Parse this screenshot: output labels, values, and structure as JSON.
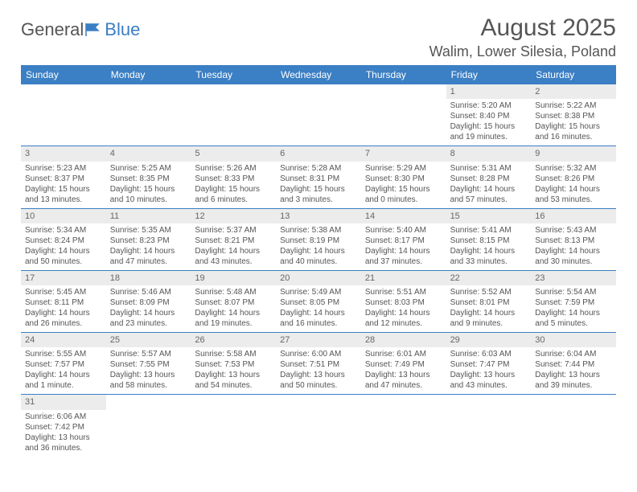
{
  "brand": {
    "part1": "General",
    "part2": "Blue"
  },
  "title": "August 2025",
  "location": "Walim, Lower Silesia, Poland",
  "colors": {
    "header_bg": "#3b7fc4",
    "header_text": "#ffffff",
    "daynum_bg": "#ececec",
    "border": "#3b7fc4",
    "text": "#555555",
    "background": "#ffffff"
  },
  "daynames": [
    "Sunday",
    "Monday",
    "Tuesday",
    "Wednesday",
    "Thursday",
    "Friday",
    "Saturday"
  ],
  "weeks": [
    [
      null,
      null,
      null,
      null,
      null,
      {
        "n": "1",
        "sr": "Sunrise: 5:20 AM",
        "ss": "Sunset: 8:40 PM",
        "dl": "Daylight: 15 hours and 19 minutes."
      },
      {
        "n": "2",
        "sr": "Sunrise: 5:22 AM",
        "ss": "Sunset: 8:38 PM",
        "dl": "Daylight: 15 hours and 16 minutes."
      }
    ],
    [
      {
        "n": "3",
        "sr": "Sunrise: 5:23 AM",
        "ss": "Sunset: 8:37 PM",
        "dl": "Daylight: 15 hours and 13 minutes."
      },
      {
        "n": "4",
        "sr": "Sunrise: 5:25 AM",
        "ss": "Sunset: 8:35 PM",
        "dl": "Daylight: 15 hours and 10 minutes."
      },
      {
        "n": "5",
        "sr": "Sunrise: 5:26 AM",
        "ss": "Sunset: 8:33 PM",
        "dl": "Daylight: 15 hours and 6 minutes."
      },
      {
        "n": "6",
        "sr": "Sunrise: 5:28 AM",
        "ss": "Sunset: 8:31 PM",
        "dl": "Daylight: 15 hours and 3 minutes."
      },
      {
        "n": "7",
        "sr": "Sunrise: 5:29 AM",
        "ss": "Sunset: 8:30 PM",
        "dl": "Daylight: 15 hours and 0 minutes."
      },
      {
        "n": "8",
        "sr": "Sunrise: 5:31 AM",
        "ss": "Sunset: 8:28 PM",
        "dl": "Daylight: 14 hours and 57 minutes."
      },
      {
        "n": "9",
        "sr": "Sunrise: 5:32 AM",
        "ss": "Sunset: 8:26 PM",
        "dl": "Daylight: 14 hours and 53 minutes."
      }
    ],
    [
      {
        "n": "10",
        "sr": "Sunrise: 5:34 AM",
        "ss": "Sunset: 8:24 PM",
        "dl": "Daylight: 14 hours and 50 minutes."
      },
      {
        "n": "11",
        "sr": "Sunrise: 5:35 AM",
        "ss": "Sunset: 8:23 PM",
        "dl": "Daylight: 14 hours and 47 minutes."
      },
      {
        "n": "12",
        "sr": "Sunrise: 5:37 AM",
        "ss": "Sunset: 8:21 PM",
        "dl": "Daylight: 14 hours and 43 minutes."
      },
      {
        "n": "13",
        "sr": "Sunrise: 5:38 AM",
        "ss": "Sunset: 8:19 PM",
        "dl": "Daylight: 14 hours and 40 minutes."
      },
      {
        "n": "14",
        "sr": "Sunrise: 5:40 AM",
        "ss": "Sunset: 8:17 PM",
        "dl": "Daylight: 14 hours and 37 minutes."
      },
      {
        "n": "15",
        "sr": "Sunrise: 5:41 AM",
        "ss": "Sunset: 8:15 PM",
        "dl": "Daylight: 14 hours and 33 minutes."
      },
      {
        "n": "16",
        "sr": "Sunrise: 5:43 AM",
        "ss": "Sunset: 8:13 PM",
        "dl": "Daylight: 14 hours and 30 minutes."
      }
    ],
    [
      {
        "n": "17",
        "sr": "Sunrise: 5:45 AM",
        "ss": "Sunset: 8:11 PM",
        "dl": "Daylight: 14 hours and 26 minutes."
      },
      {
        "n": "18",
        "sr": "Sunrise: 5:46 AM",
        "ss": "Sunset: 8:09 PM",
        "dl": "Daylight: 14 hours and 23 minutes."
      },
      {
        "n": "19",
        "sr": "Sunrise: 5:48 AM",
        "ss": "Sunset: 8:07 PM",
        "dl": "Daylight: 14 hours and 19 minutes."
      },
      {
        "n": "20",
        "sr": "Sunrise: 5:49 AM",
        "ss": "Sunset: 8:05 PM",
        "dl": "Daylight: 14 hours and 16 minutes."
      },
      {
        "n": "21",
        "sr": "Sunrise: 5:51 AM",
        "ss": "Sunset: 8:03 PM",
        "dl": "Daylight: 14 hours and 12 minutes."
      },
      {
        "n": "22",
        "sr": "Sunrise: 5:52 AM",
        "ss": "Sunset: 8:01 PM",
        "dl": "Daylight: 14 hours and 9 minutes."
      },
      {
        "n": "23",
        "sr": "Sunrise: 5:54 AM",
        "ss": "Sunset: 7:59 PM",
        "dl": "Daylight: 14 hours and 5 minutes."
      }
    ],
    [
      {
        "n": "24",
        "sr": "Sunrise: 5:55 AM",
        "ss": "Sunset: 7:57 PM",
        "dl": "Daylight: 14 hours and 1 minute."
      },
      {
        "n": "25",
        "sr": "Sunrise: 5:57 AM",
        "ss": "Sunset: 7:55 PM",
        "dl": "Daylight: 13 hours and 58 minutes."
      },
      {
        "n": "26",
        "sr": "Sunrise: 5:58 AM",
        "ss": "Sunset: 7:53 PM",
        "dl": "Daylight: 13 hours and 54 minutes."
      },
      {
        "n": "27",
        "sr": "Sunrise: 6:00 AM",
        "ss": "Sunset: 7:51 PM",
        "dl": "Daylight: 13 hours and 50 minutes."
      },
      {
        "n": "28",
        "sr": "Sunrise: 6:01 AM",
        "ss": "Sunset: 7:49 PM",
        "dl": "Daylight: 13 hours and 47 minutes."
      },
      {
        "n": "29",
        "sr": "Sunrise: 6:03 AM",
        "ss": "Sunset: 7:47 PM",
        "dl": "Daylight: 13 hours and 43 minutes."
      },
      {
        "n": "30",
        "sr": "Sunrise: 6:04 AM",
        "ss": "Sunset: 7:44 PM",
        "dl": "Daylight: 13 hours and 39 minutes."
      }
    ],
    [
      {
        "n": "31",
        "sr": "Sunrise: 6:06 AM",
        "ss": "Sunset: 7:42 PM",
        "dl": "Daylight: 13 hours and 36 minutes."
      },
      null,
      null,
      null,
      null,
      null,
      null
    ]
  ]
}
